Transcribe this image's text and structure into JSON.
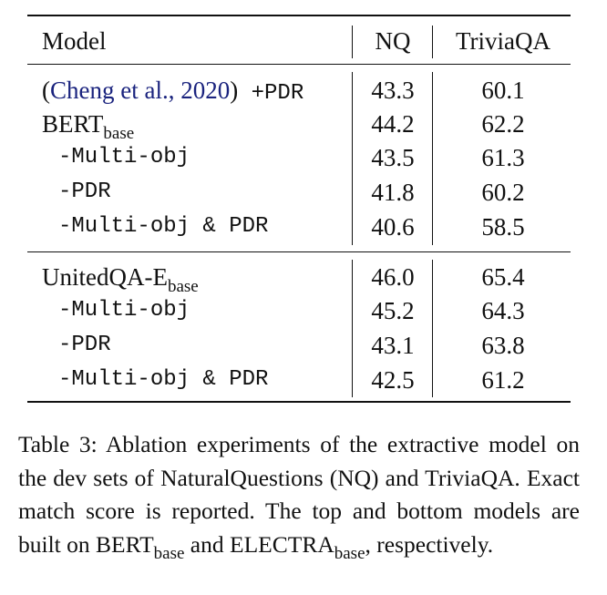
{
  "table": {
    "header": {
      "model": "Model",
      "col1": "NQ",
      "col2": "TriviaQA"
    },
    "cite": {
      "open": "(",
      "link": "Cheng et al., 2020",
      "close": ")",
      "suffix": " +PDR"
    },
    "groups": [
      {
        "base": {
          "name": "BERT",
          "sub": "base"
        },
        "rows": [
          {
            "label": "",
            "nq": "43.3",
            "tqa": "60.1"
          },
          {
            "label": "",
            "nq": "44.2",
            "tqa": "62.2"
          },
          {
            "label": "-Multi-obj",
            "nq": "43.5",
            "tqa": "61.3"
          },
          {
            "label": "-PDR",
            "nq": "41.8",
            "tqa": "60.2"
          },
          {
            "label": "-Multi-obj & PDR",
            "nq": "40.6",
            "tqa": "58.5"
          }
        ]
      },
      {
        "base": {
          "name": "UnitedQA-E",
          "sub": "base"
        },
        "rows": [
          {
            "label": "",
            "nq": "46.0",
            "tqa": "65.4"
          },
          {
            "label": "-Multi-obj",
            "nq": "45.2",
            "tqa": "64.3"
          },
          {
            "label": "-PDR",
            "nq": "43.1",
            "tqa": "63.8"
          },
          {
            "label": "-Multi-obj & PDR",
            "nq": "42.5",
            "tqa": "61.2"
          }
        ]
      }
    ]
  },
  "caption": {
    "text_before": "Table 3: Ablation experiments of the extractive model on the dev sets of NaturalQuestions (NQ) and TriviaQA. Exact match score is reported. The top and bottom models are built on ",
    "bert": "BERT",
    "bert_sub": "base",
    "and": " and ",
    "electra": "ELECTRA",
    "electra_sub": "base",
    "text_after": ", respectively."
  }
}
